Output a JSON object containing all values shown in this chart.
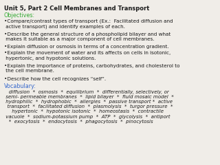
{
  "title": "Unit 5, Part 2 Cell Membranes and Transport",
  "objectives_label": "Objectives:",
  "objectives_color": "#33aa33",
  "vocabulary_label": "Vocabulary:",
  "vocabulary_color": "#3366cc",
  "background_color": "#f0ede8",
  "text_color": "#1a1a1a",
  "objectives": [
    "•Compare/contrast types of transport (Ex.:  Facilitated diffusion and\n active transport) and identify examples of each.",
    "•Describe the general structure of a phospholipid bilayer and what\n makes it suitable as a major component of cell membranes.",
    "•Explain diffusion or osmosis in terms of a concentration gradient.",
    "•Explain the movement of water and its affects on cells in isotonic,\n hypertonic, and hypotonic solutions.",
    "•Explain the importance of proteins, carbohydrates, and cholesterol to\n the cell membrane.",
    "•Describe how the cell recognizes “self”."
  ],
  "vocab_text": "   diffusion  *  osmosis  *  equilibrium  *  differentially, selectively, or\n semi- permeable membranes  *  lipid bilayer  *  fluid mosaic model  *\n hydrophilic  *  hydrophobic  *  allergies  *  passive transport *  active\n  transport  *  facilitated diffusion  *  plasmolysis  *  turgor pressure  *\n     hypertonic  *  hypotonic isotonic  *  homeostasis  *  contractile\n vacuole  *  sodium-potassium pump  *  ATP  *  glycolysis  *  antiport\n   *  exocytosis  *  endocytosis  *  phagocytosis  *  pinocytosis"
}
